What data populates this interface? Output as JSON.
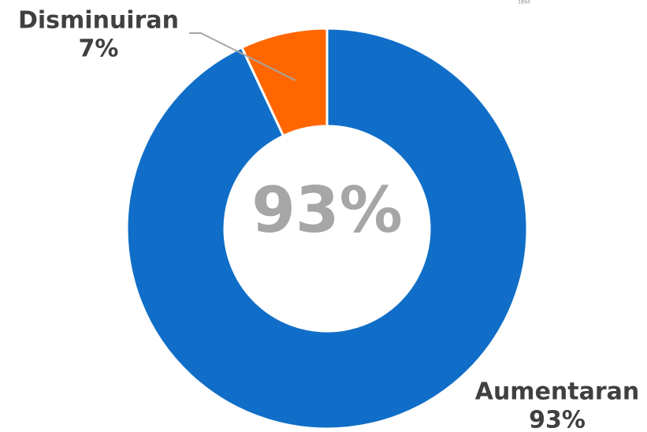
{
  "chart_data": {
    "type": "donut",
    "categories": [
      "Aumentaran",
      "Disminuiran"
    ],
    "values": [
      93,
      7
    ],
    "value_labels": [
      "93%",
      "7%"
    ],
    "colors": [
      "#106ec8",
      "#ff6600"
    ],
    "center_label": "93%",
    "annotation": "1894"
  }
}
